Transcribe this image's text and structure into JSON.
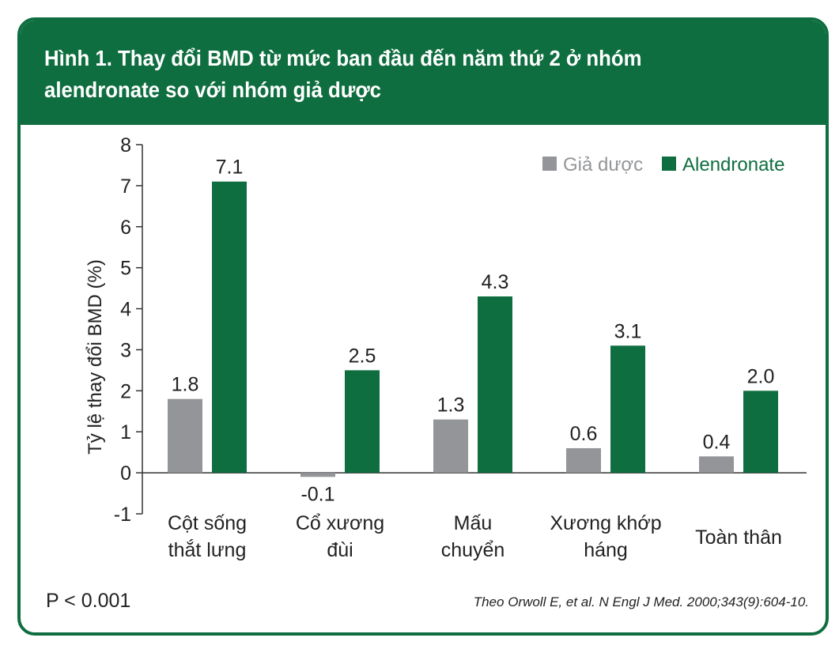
{
  "title": "Hình 1. Thay đổi BMD từ mức ban đầu đến năm thứ 2 ở nhóm alendronate so với nhóm giả dược",
  "footer": {
    "p_value": "P < 0.001",
    "source": "Theo Orwoll E, et al. N Engl J Med. 2000;343(9):604-10."
  },
  "colors": {
    "brand_green": "#0f6e3f",
    "placebo_gray": "#939598",
    "alendronate_green": "#0f6e3f"
  },
  "chart_data": {
    "type": "bar",
    "title": "Hình 1. Thay đổi BMD từ mức ban đầu đến năm thứ 2 ở nhóm alendronate so với nhóm giả dược",
    "categories": [
      [
        "Cột sống",
        "thắt lưng"
      ],
      [
        "Cổ xương",
        "đùi"
      ],
      [
        "Mấu",
        "chuyển"
      ],
      [
        "Xương khớp",
        "háng"
      ],
      [
        "Toàn thân"
      ]
    ],
    "series": [
      {
        "name": "Giả dược",
        "color": "#939598",
        "values": [
          1.8,
          -0.1,
          1.3,
          0.6,
          0.4
        ],
        "labels": [
          "1.8",
          "-0.1",
          "1.3",
          "0.6",
          "0.4"
        ]
      },
      {
        "name": "Alendronate",
        "color": "#0f6e3f",
        "values": [
          7.1,
          2.5,
          4.3,
          3.1,
          2.0
        ],
        "labels": [
          "7.1",
          "2.5",
          "4.3",
          "3.1",
          "2.0"
        ]
      }
    ],
    "xlabel": "",
    "ylabel": "Tỷ lệ thay đổi BMD (%)",
    "ylim": [
      -1,
      8
    ],
    "yticks": [
      -1,
      0,
      1,
      2,
      3,
      4,
      5,
      6,
      7,
      8
    ],
    "grid": false,
    "legend_position": "top-right"
  }
}
